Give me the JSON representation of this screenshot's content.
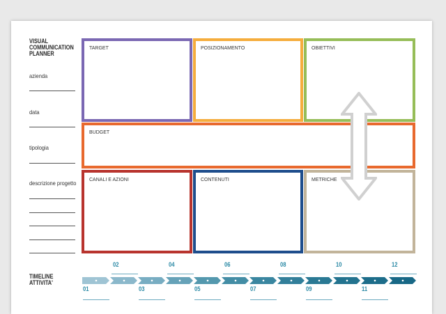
{
  "title_lines": [
    "VISUAL",
    "COMMUNICATION",
    "PLANNER"
  ],
  "fields": {
    "azienda": "azienda",
    "data": "data",
    "tipologia": "tipologia",
    "descrizione": "descrizione progetto"
  },
  "boxes": {
    "target": {
      "label": "TARGET",
      "color": "#7b68b3"
    },
    "posizionamento": {
      "label": "POSIZIONAMENTO",
      "color": "#f5ad3d"
    },
    "obiettivi": {
      "label": "OBIETTIVI",
      "color": "#96bd58"
    },
    "budget": {
      "label": "BUDGET",
      "color": "#e8692e"
    },
    "canali": {
      "label": "CANALI E AZIONI",
      "color": "#b8342e"
    },
    "contenuti": {
      "label": "CONTENUTI",
      "color": "#1e4d8c"
    },
    "metriche": {
      "label": "METRICHE",
      "color": "#c2b49a"
    }
  },
  "timeline": {
    "title_lines": [
      "TIMELINE",
      "ATTIVITA'"
    ],
    "top_numbers": [
      "02",
      "04",
      "06",
      "08",
      "10",
      "12"
    ],
    "bottom_numbers": [
      "01",
      "03",
      "05",
      "07",
      "09",
      "11"
    ],
    "colors": [
      "#9fc4d4",
      "#8bb8cb",
      "#78adc2",
      "#66a2b8",
      "#5498ae",
      "#438da5",
      "#3a86a0",
      "#327f9a",
      "#2a7994",
      "#23738f",
      "#1d6d8a",
      "#186886"
    ]
  },
  "arrow_color": "#d0d0d0"
}
